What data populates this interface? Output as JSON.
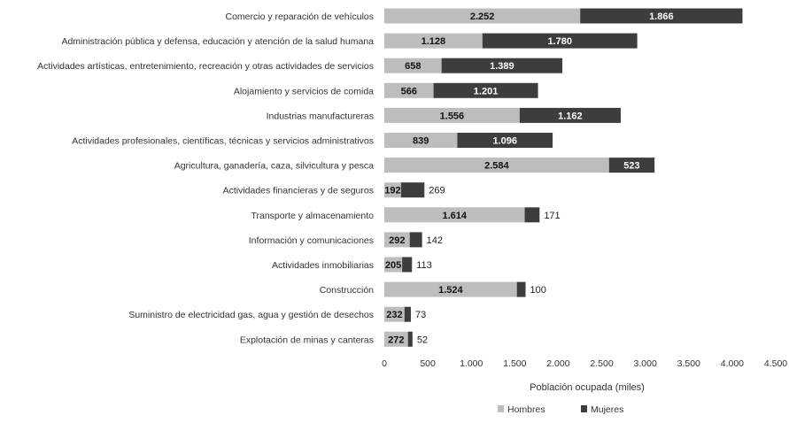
{
  "chart_data": {
    "type": "bar",
    "orientation": "horizontal",
    "stacked": true,
    "categories": [
      "Comercio y reparación de vehículos",
      "Administración pública y defensa, educación y atención de la salud humana",
      "Actividades artísticas, entretenimiento, recreación y otras actividades de servicios",
      "Alojamiento y servicios de comida",
      "Industrias manufactureras",
      "Actividades profesionales, científicas, técnicas y servicios administrativos",
      "Agricultura, ganadería, caza, silvicultura y pesca",
      "Actividades financieras y de seguros",
      "Transporte y almacenamiento",
      "Información y comunicaciones",
      "Actividades inmobiliarias",
      "Construcción",
      "Suministro de electricidad gas, agua y gestión de desechos",
      "Explotación de minas y canteras"
    ],
    "series": [
      {
        "name": "Hombres",
        "color": "#bdbdbd",
        "values": [
          2252,
          1128,
          658,
          566,
          1556,
          839,
          2584,
          192,
          1614,
          292,
          205,
          1524,
          232,
          272
        ],
        "labels": [
          "2.252",
          "1.128",
          "658",
          "566",
          "1.556",
          "839",
          "2.584",
          "192",
          "1.614",
          "292",
          "205",
          "1.524",
          "232",
          "272"
        ]
      },
      {
        "name": "Mujeres",
        "color": "#3d3d3d",
        "values": [
          1866,
          1780,
          1389,
          1201,
          1162,
          1096,
          523,
          269,
          171,
          142,
          113,
          100,
          73,
          52
        ],
        "labels": [
          "1.866",
          "1.780",
          "1.389",
          "1.201",
          "1.162",
          "1.096",
          "523",
          "269",
          "171",
          "142",
          "113",
          "100",
          "73",
          "52"
        ]
      }
    ],
    "xlabel": "Población ocupada (miles)",
    "xlim": [
      0,
      4500
    ],
    "xticks": [
      0,
      500,
      1000,
      1500,
      2000,
      2500,
      3000,
      3500,
      4000,
      4500
    ],
    "xtick_labels": [
      "0",
      "500",
      "1.000",
      "1.500",
      "2.000",
      "2.500",
      "3.000",
      "3.500",
      "4.000",
      "4.500"
    ],
    "legend": {
      "position": "bottom",
      "entries": [
        "Hombres",
        "Mujeres"
      ]
    },
    "grid": false
  }
}
